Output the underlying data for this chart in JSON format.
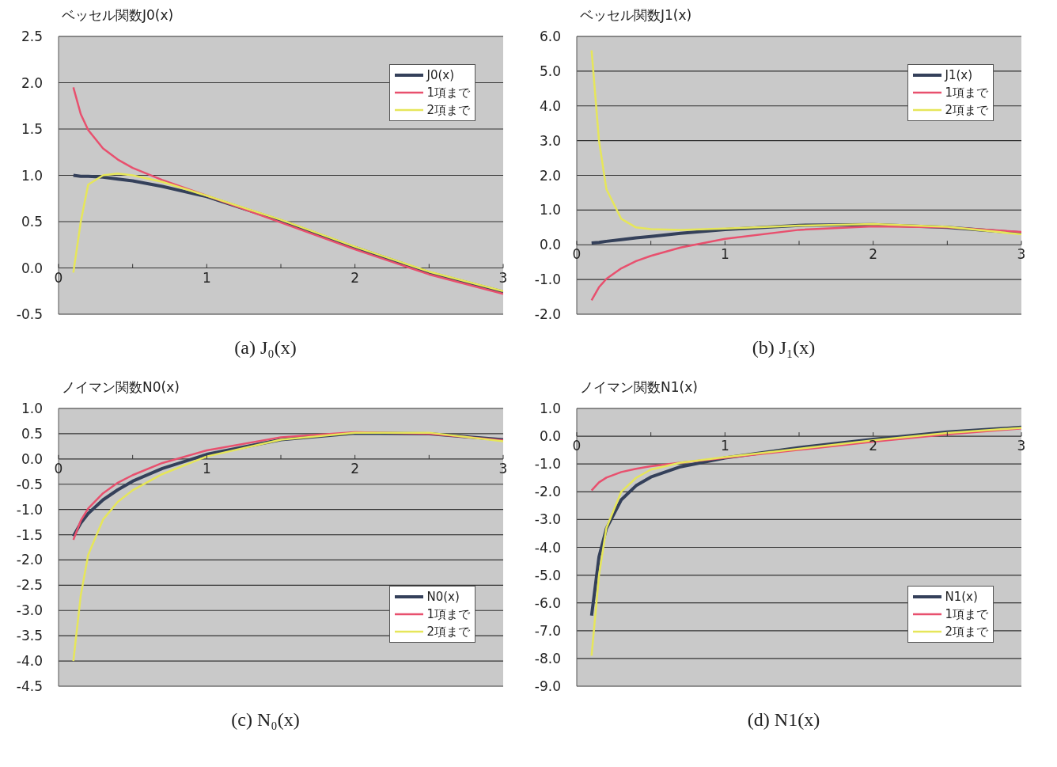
{
  "chart_data": [
    {
      "type": "line",
      "title": "ベッセル関数J0(x)",
      "x": [
        0.1,
        0.15,
        0.2,
        0.3,
        0.4,
        0.5,
        0.7,
        1.0,
        1.5,
        2.0,
        2.5,
        3.0
      ],
      "series": [
        {
          "name": "J0(x)",
          "color": "#34405a",
          "values": [
            1.0,
            0.99,
            0.99,
            0.98,
            0.96,
            0.94,
            0.88,
            0.77,
            0.51,
            0.22,
            -0.05,
            -0.26
          ]
        },
        {
          "name": "1項まで",
          "color": "#e8506e",
          "values": [
            1.95,
            1.66,
            1.49,
            1.29,
            1.17,
            1.08,
            0.95,
            0.78,
            0.49,
            0.2,
            -0.07,
            -0.28
          ]
        },
        {
          "name": "2項まで",
          "color": "#e6e65a",
          "values": [
            -0.05,
            0.5,
            0.9,
            1.0,
            1.02,
            1.0,
            0.93,
            0.78,
            0.52,
            0.23,
            -0.04,
            -0.25
          ]
        }
      ],
      "xlim": [
        0,
        3
      ],
      "xticks": [
        0,
        {
          "value": 0.5,
          "label": null
        },
        1,
        {
          "value": 1.5,
          "label": null
        },
        2,
        {
          "value": 2.5,
          "label": null
        },
        3
      ],
      "ylim": [
        -0.5,
        2.5
      ],
      "yticks": [
        {
          "value": -0.5,
          "label": "-0.5"
        },
        {
          "value": 0,
          "label": "0.0"
        },
        {
          "value": 0.5,
          "label": "0.5"
        },
        {
          "value": 1,
          "label": "1.0"
        },
        {
          "value": 1.5,
          "label": "1.5"
        },
        {
          "value": 2,
          "label": "2.0"
        },
        {
          "value": 2.5,
          "label": "2.5"
        }
      ],
      "grid": "y",
      "legend": "top right",
      "marker": "none",
      "line_style": "solid",
      "annotations": [
        "(a) J₀(x)"
      ]
    },
    {
      "type": "line",
      "title": "ベッセル関数J1(x)",
      "x": [
        0.1,
        0.15,
        0.2,
        0.3,
        0.4,
        0.5,
        0.7,
        1.0,
        1.5,
        2.0,
        2.5,
        3.0
      ],
      "series": [
        {
          "name": "J1(x)",
          "color": "#34405a",
          "values": [
            0.05,
            0.07,
            0.1,
            0.15,
            0.2,
            0.24,
            0.33,
            0.44,
            0.56,
            0.58,
            0.5,
            0.34
          ]
        },
        {
          "name": "1項まで",
          "color": "#e8506e",
          "values": [
            -1.6,
            -1.22,
            -0.98,
            -0.68,
            -0.47,
            -0.32,
            -0.08,
            0.17,
            0.43,
            0.53,
            0.5,
            0.37
          ]
        },
        {
          "name": "2項まで",
          "color": "#e6e65a",
          "values": [
            5.6,
            3.0,
            1.6,
            0.75,
            0.5,
            0.45,
            0.43,
            0.47,
            0.55,
            0.6,
            0.52,
            0.3
          ]
        }
      ],
      "xlim": [
        0,
        3
      ],
      "xticks": [
        0,
        {
          "value": 0.5,
          "label": null
        },
        1,
        {
          "value": 1.5,
          "label": null
        },
        2,
        {
          "value": 2.5,
          "label": null
        },
        3
      ],
      "ylim": [
        -2,
        6
      ],
      "yticks": [
        {
          "value": -2,
          "label": "-2.0"
        },
        {
          "value": -1,
          "label": "-1.0"
        },
        {
          "value": 0,
          "label": "0.0"
        },
        {
          "value": 1,
          "label": "1.0"
        },
        {
          "value": 2,
          "label": "2.0"
        },
        {
          "value": 3,
          "label": "3.0"
        },
        {
          "value": 4,
          "label": "4.0"
        },
        {
          "value": 5,
          "label": "5.0"
        },
        {
          "value": 6,
          "label": "6.0"
        }
      ],
      "grid": "y",
      "legend": "top right",
      "marker": "none",
      "line_style": "solid",
      "annotations": [
        "(b) J₁(x)"
      ]
    },
    {
      "type": "line",
      "title": "ノイマン関数N0(x)",
      "x": [
        0.1,
        0.15,
        0.2,
        0.3,
        0.4,
        0.5,
        0.7,
        1.0,
        1.5,
        2.0,
        2.5,
        3.0
      ],
      "series": [
        {
          "name": "N0(x)",
          "color": "#34405a",
          "values": [
            -1.53,
            -1.27,
            -1.08,
            -0.81,
            -0.61,
            -0.44,
            -0.19,
            0.09,
            0.38,
            0.51,
            0.5,
            0.38
          ]
        },
        {
          "name": "1項まで",
          "color": "#e8506e",
          "values": [
            -1.6,
            -1.22,
            -0.98,
            -0.68,
            -0.47,
            -0.32,
            -0.08,
            0.17,
            0.43,
            0.53,
            0.5,
            0.37
          ]
        },
        {
          "name": "2項まで",
          "color": "#e6e65a",
          "values": [
            -4.0,
            -2.7,
            -1.9,
            -1.2,
            -0.85,
            -0.62,
            -0.3,
            0.05,
            0.38,
            0.52,
            0.52,
            0.35
          ]
        }
      ],
      "xlim": [
        0,
        3
      ],
      "xticks": [
        0,
        {
          "value": 0.5,
          "label": null
        },
        1,
        {
          "value": 1.5,
          "label": null
        },
        2,
        {
          "value": 2.5,
          "label": null
        },
        3
      ],
      "ylim": [
        -4.5,
        1
      ],
      "yticks": [
        {
          "value": -4.5,
          "label": "-4.5"
        },
        {
          "value": -4,
          "label": "-4.0"
        },
        {
          "value": -3.5,
          "label": "-3.5"
        },
        {
          "value": -3,
          "label": "-3.0"
        },
        {
          "value": -2.5,
          "label": "-2.5"
        },
        {
          "value": -2,
          "label": "-2.0"
        },
        {
          "value": -1.5,
          "label": "-1.5"
        },
        {
          "value": -1,
          "label": "-1.0"
        },
        {
          "value": -0.5,
          "label": "-0.5"
        },
        {
          "value": 0,
          "label": "0.0"
        },
        {
          "value": 0.5,
          "label": "0.5"
        },
        {
          "value": 1,
          "label": "1.0"
        }
      ],
      "grid": "y",
      "legend": "bottom right",
      "marker": "none",
      "line_style": "solid",
      "annotations": [
        "(c) N₀(x)"
      ]
    },
    {
      "type": "line",
      "title": "ノイマン関数N1(x)",
      "x": [
        0.1,
        0.15,
        0.2,
        0.3,
        0.4,
        0.5,
        0.7,
        1.0,
        1.5,
        2.0,
        2.5,
        3.0
      ],
      "series": [
        {
          "name": "N1(x)",
          "color": "#34405a",
          "values": [
            -6.46,
            -4.34,
            -3.32,
            -2.29,
            -1.78,
            -1.47,
            -1.1,
            -0.78,
            -0.41,
            -0.11,
            0.15,
            0.32
          ]
        },
        {
          "name": "1項まで",
          "color": "#e8506e",
          "values": [
            -1.95,
            -1.66,
            -1.49,
            -1.29,
            -1.17,
            -1.08,
            -0.95,
            -0.78,
            -0.49,
            -0.2,
            0.07,
            0.28
          ]
        },
        {
          "name": "2項まで",
          "color": "#e6e65a",
          "values": [
            -7.9,
            -5.0,
            -3.3,
            -2.0,
            -1.5,
            -1.2,
            -0.95,
            -0.75,
            -0.45,
            -0.15,
            0.12,
            0.3
          ]
        }
      ],
      "xlim": [
        0,
        3
      ],
      "xticks": [
        0,
        {
          "value": 0.5,
          "label": null
        },
        1,
        {
          "value": 1.5,
          "label": null
        },
        2,
        {
          "value": 2.5,
          "label": null
        },
        3
      ],
      "ylim": [
        -9,
        1
      ],
      "yticks": [
        {
          "value": -9,
          "label": "-9.0"
        },
        {
          "value": -8,
          "label": "-8.0"
        },
        {
          "value": -7,
          "label": "-7.0"
        },
        {
          "value": -6,
          "label": "-6.0"
        },
        {
          "value": -5,
          "label": "-5.0"
        },
        {
          "value": -4,
          "label": "-4.0"
        },
        {
          "value": -3,
          "label": "-3.0"
        },
        {
          "value": -2,
          "label": "-2.0"
        },
        {
          "value": -1,
          "label": "-1.0"
        },
        {
          "value": 0,
          "label": "0.0"
        },
        {
          "value": 1,
          "label": "1.0"
        }
      ],
      "grid": "y",
      "legend": "bottom right",
      "marker": "none",
      "line_style": "solid",
      "annotations": [
        "(d) N1(x)"
      ]
    }
  ]
}
